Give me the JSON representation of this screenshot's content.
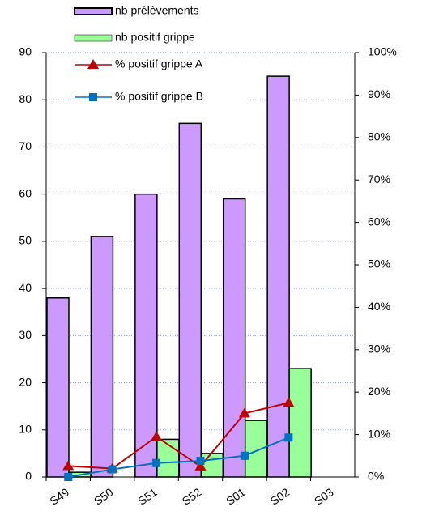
{
  "chart_data": {
    "type": "bar-line",
    "categories": [
      "S49",
      "S50",
      "S51",
      "S52",
      "S01",
      "S02",
      "S03"
    ],
    "series": [
      {
        "name": "nb  prélèvements",
        "type": "bar",
        "color": "#cc99ff",
        "values": [
          38,
          51,
          60,
          75,
          59,
          85,
          null
        ]
      },
      {
        "name": "nb positif grippe",
        "type": "bar",
        "color": "#99ff99",
        "values": [
          1,
          0,
          8,
          5,
          12,
          23,
          null
        ]
      },
      {
        "name": "% positif grippe A",
        "type": "line",
        "marker": "triangle",
        "axis": "y2",
        "color": "#c00000",
        "values": [
          2.6,
          2,
          9.5,
          2.5,
          15,
          17.5,
          null
        ]
      },
      {
        "name": "% positif grippe B",
        "type": "line",
        "marker": "square",
        "axis": "y2",
        "color": "#0070c0",
        "values": [
          0,
          1.8,
          3.3,
          3.8,
          5,
          9.3,
          null
        ]
      }
    ],
    "ylim": [
      0,
      90
    ],
    "yticks": [
      0,
      10,
      20,
      30,
      40,
      50,
      60,
      70,
      80,
      90
    ],
    "y2lim": [
      0,
      100
    ],
    "y2ticks": [
      {
        "value": 0,
        "label": "0%"
      },
      {
        "value": 10,
        "label": "10%"
      },
      {
        "value": 20,
        "label": "20%"
      },
      {
        "value": 30,
        "label": "30%"
      },
      {
        "value": 40,
        "label": "40%"
      },
      {
        "value": 50,
        "label": "50%"
      },
      {
        "value": 60,
        "label": "60%"
      },
      {
        "value": 70,
        "label": "70%"
      },
      {
        "value": 80,
        "label": "80%"
      },
      {
        "value": 90,
        "label": "90%"
      },
      {
        "value": 100,
        "label": "100%"
      }
    ],
    "grid": true
  }
}
